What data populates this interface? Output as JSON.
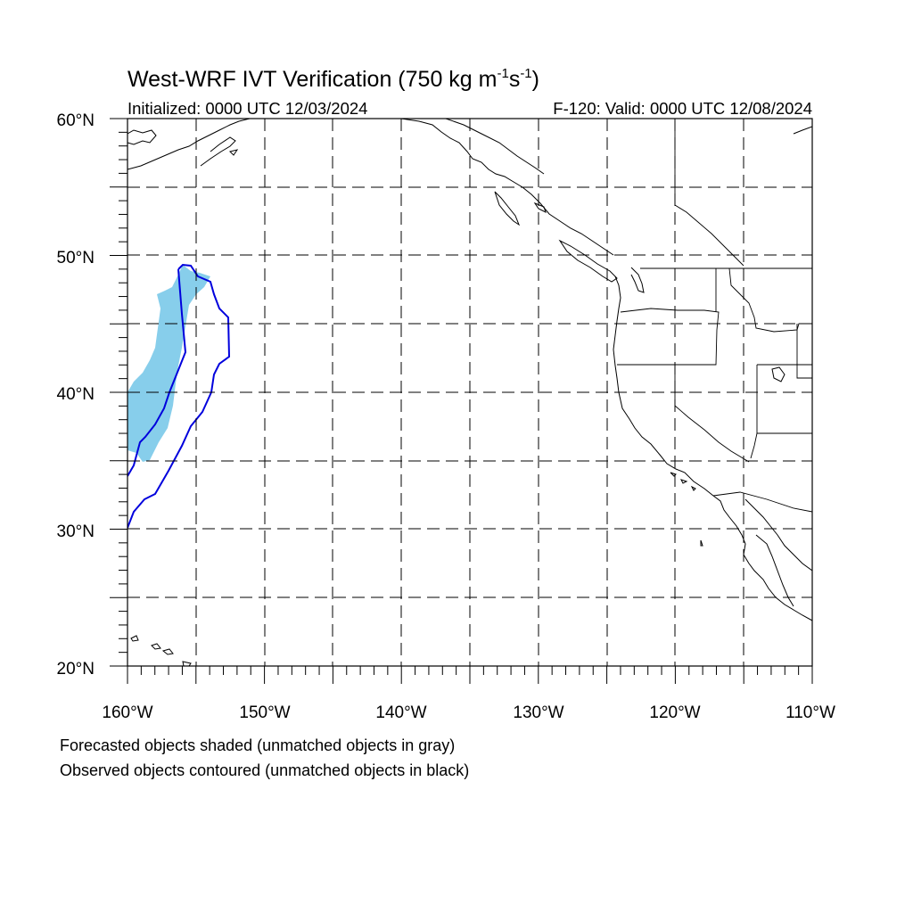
{
  "title": {
    "main": "West-WRF IVT Verification (750 kg m",
    "unit_exp1": "-1",
    "unit_s": "s",
    "unit_exp2": "-1",
    "unit_close": ")"
  },
  "subtitle": {
    "initialized": "Initialized: 0000 UTC 12/03/2024",
    "valid": "F-120: Valid: 0000 UTC 12/08/2024"
  },
  "axes": {
    "lat_labels": [
      "60°N",
      "50°N",
      "40°N",
      "30°N",
      "20°N"
    ],
    "lon_labels": [
      "160°W",
      "150°W",
      "140°W",
      "130°W",
      "120°W",
      "110°W"
    ],
    "lat_range": [
      20,
      60
    ],
    "lon_range": [
      -160,
      -110
    ],
    "grid": "dashed every 5°"
  },
  "objects": {
    "forecast_color": "#87CEEB",
    "observed_color": "#0000DD",
    "coast_color": "#000000"
  },
  "footnotes": {
    "line1": "Forecasted objects shaded (unmatched objects in gray)",
    "line2": "Observed objects contoured (unmatched objects in black)"
  }
}
